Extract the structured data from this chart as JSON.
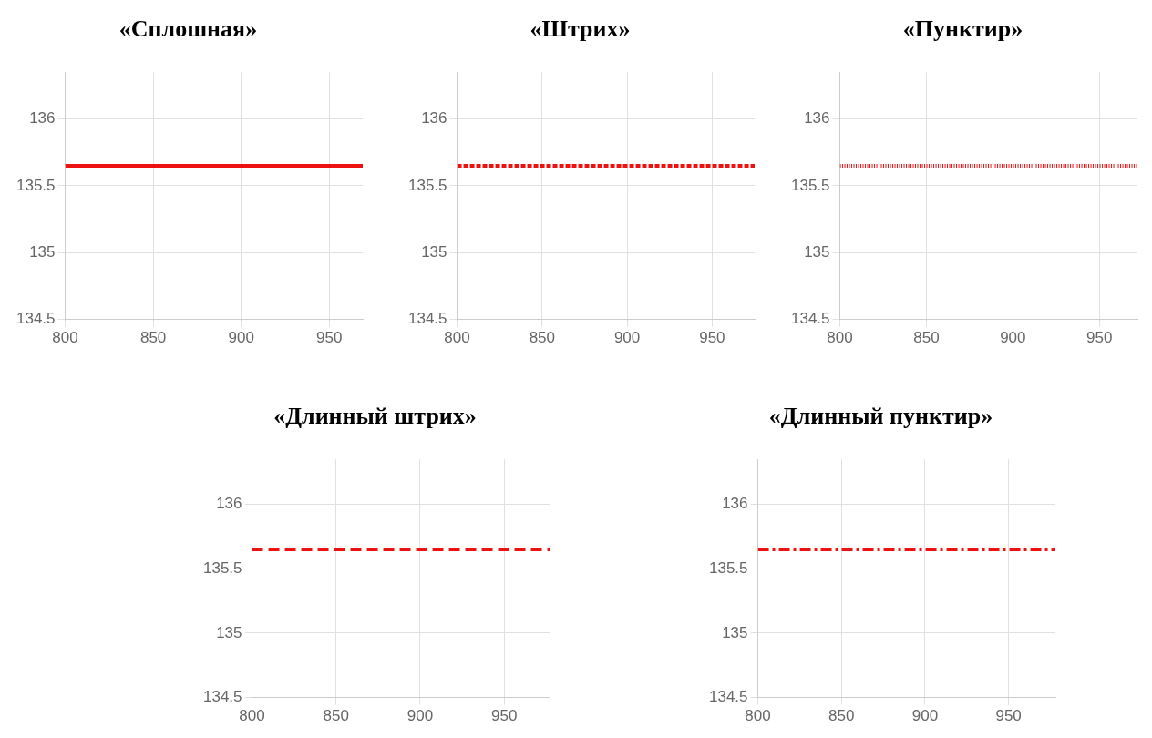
{
  "chart_data": [
    {
      "type": "line",
      "title": "«Сплошная»",
      "x": [
        800,
        969
      ],
      "values": [
        135.65,
        135.65
      ],
      "color": "#ee1111",
      "line_style": "solid",
      "xlim": [
        800,
        969
      ],
      "xticks": [
        800,
        850,
        900,
        950
      ],
      "ylim": [
        134.5,
        136.35
      ],
      "yticks": [
        134.5,
        135,
        135.5,
        136
      ],
      "grid": true
    },
    {
      "type": "line",
      "title": "«Штрих»",
      "x": [
        800,
        975
      ],
      "values": [
        135.65,
        135.65
      ],
      "color": "#ee1111",
      "line_style": "dashed",
      "xlim": [
        800,
        975
      ],
      "xticks": [
        800,
        850,
        900,
        950
      ],
      "ylim": [
        134.5,
        136.35
      ],
      "yticks": [
        134.5,
        135,
        135.5,
        136
      ],
      "grid": true
    },
    {
      "type": "line",
      "title": "«Пунктир»",
      "x": [
        800,
        972
      ],
      "values": [
        135.65,
        135.65
      ],
      "color": "#ee1111",
      "line_style": "dotted",
      "xlim": [
        800,
        972
      ],
      "xticks": [
        800,
        850,
        900,
        950
      ],
      "ylim": [
        134.5,
        136.35
      ],
      "yticks": [
        134.5,
        135,
        135.5,
        136
      ],
      "grid": true
    },
    {
      "type": "line",
      "title": "«Длинный штрих»",
      "x": [
        800,
        977
      ],
      "values": [
        135.65,
        135.65
      ],
      "color": "#ee1111",
      "line_style": "longdash",
      "xlim": [
        800,
        977
      ],
      "xticks": [
        800,
        850,
        900,
        950
      ],
      "ylim": [
        134.5,
        136.35
      ],
      "yticks": [
        134.5,
        135,
        135.5,
        136
      ],
      "grid": true
    },
    {
      "type": "line",
      "title": "«Длинный пунктир»",
      "x": [
        800,
        978
      ],
      "values": [
        135.65,
        135.65
      ],
      "color": "#ee1111",
      "line_style": "dashdot",
      "xlim": [
        800,
        978
      ],
      "xticks": [
        800,
        850,
        900,
        950
      ],
      "ylim": [
        134.5,
        136.35
      ],
      "yticks": [
        134.5,
        135,
        135.5,
        136
      ],
      "grid": true
    }
  ]
}
